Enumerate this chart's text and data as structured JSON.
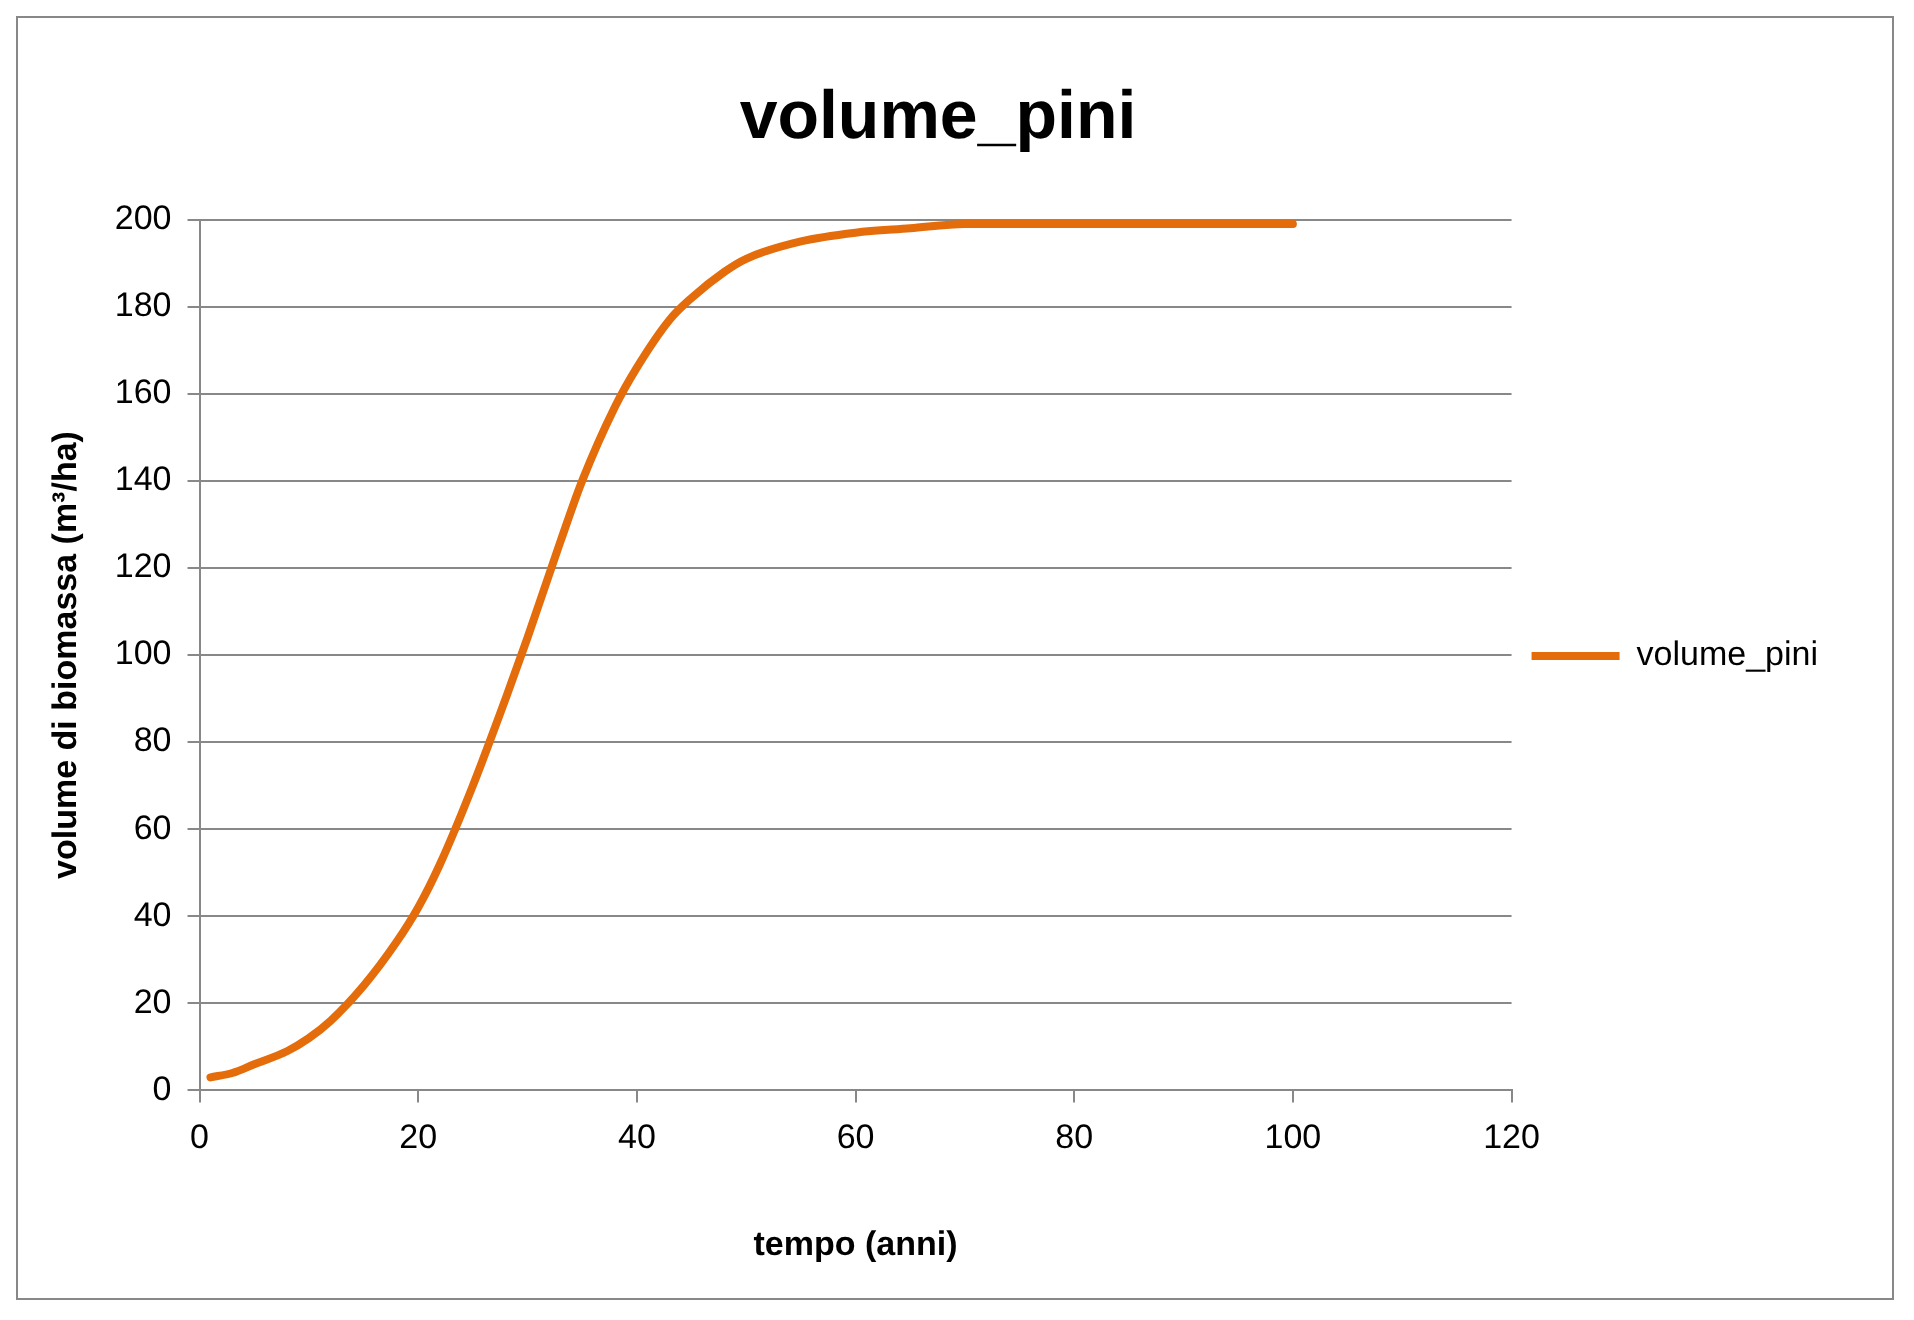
{
  "chart_data": {
    "type": "line",
    "title": "volume_pini",
    "xlabel": "tempo (anni)",
    "ylabel": "volume di biomassa (m³/ha)",
    "x": [
      1,
      3,
      5,
      8,
      10,
      12,
      15,
      18,
      20,
      22,
      25,
      28,
      30,
      33,
      35,
      38,
      40,
      43,
      45,
      48,
      50,
      55,
      60,
      65,
      70,
      80,
      90,
      100
    ],
    "series": [
      {
        "name": "volume_pini",
        "color": "#e46c0a",
        "values": [
          3,
          4,
          6,
          9,
          12,
          16,
          24,
          34,
          42,
          52,
          70,
          90,
          104,
          126,
          140,
          157,
          166,
          177,
          182,
          188,
          191,
          195,
          197,
          198,
          199,
          199,
          199,
          199
        ]
      }
    ],
    "xlim": [
      0,
      120
    ],
    "xticks": [
      0,
      20,
      40,
      60,
      80,
      100,
      120
    ],
    "ylim": [
      0,
      200
    ],
    "yticks": [
      0,
      20,
      40,
      60,
      80,
      100,
      120,
      140,
      160,
      180,
      200
    ],
    "grid": "y",
    "legend": "right",
    "marker": "none",
    "line_style": "solid"
  }
}
